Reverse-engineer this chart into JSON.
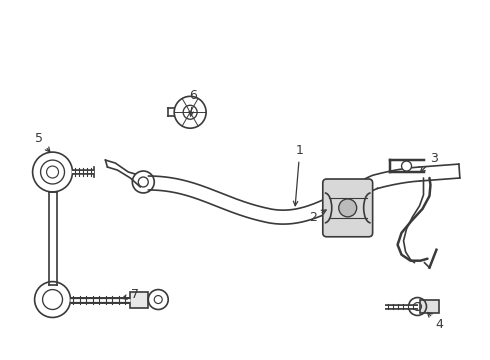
{
  "bg_color": "#ffffff",
  "line_color": "#3a3a3a",
  "fig_width": 4.9,
  "fig_height": 3.6,
  "dpi": 100
}
